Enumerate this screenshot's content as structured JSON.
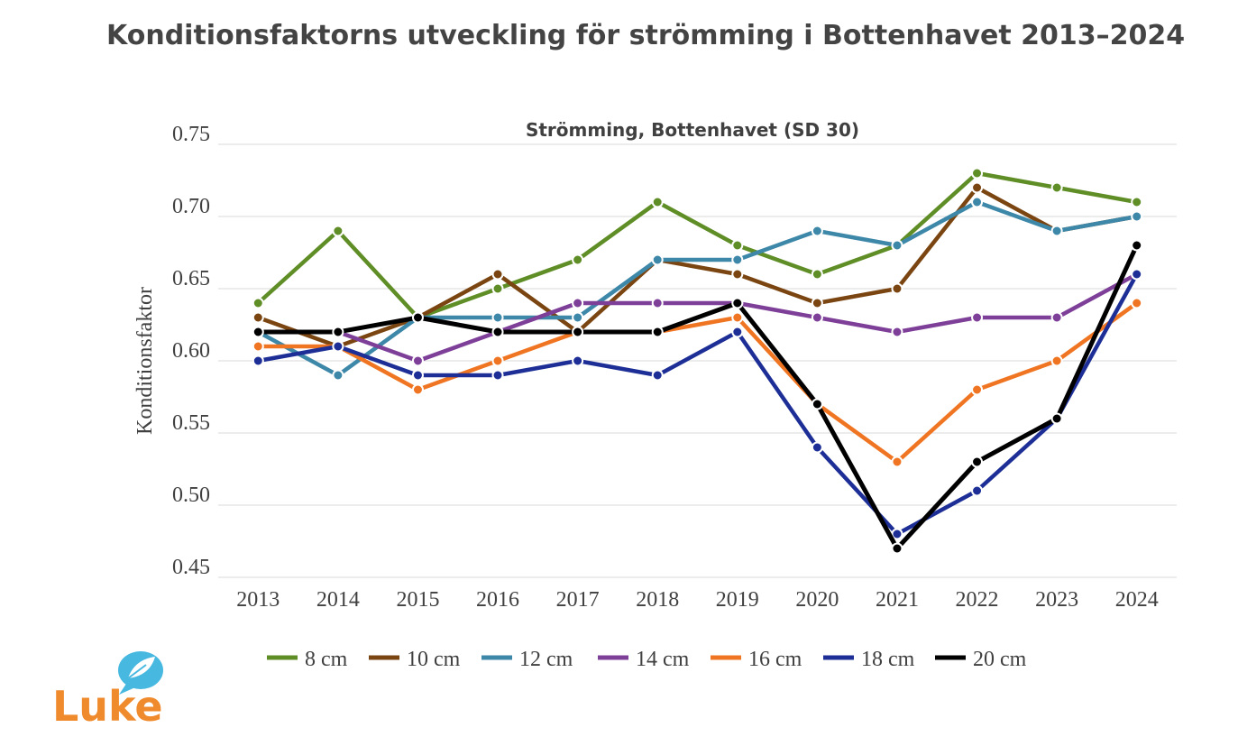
{
  "page": {
    "title": "Konditionsfaktorns utveckling för strömming i Bottenhavet 2013–2024"
  },
  "logo": {
    "text": "Luke",
    "icon": "leaf-speech-bubble-icon",
    "colors": {
      "text": "#ef8a2d",
      "leaf": "#47b8e0"
    }
  },
  "chart_data": {
    "type": "line",
    "title": "Strömming, Bottenhavet (SD 30)",
    "xlabel": "",
    "ylabel": "Konditionsfaktor",
    "ylim": [
      0.45,
      0.75
    ],
    "yticks": [
      "0.75",
      "0.70",
      "0.65",
      "0.60",
      "0.55",
      "0.50",
      "0.45"
    ],
    "grid": true,
    "legend": "bottom",
    "categories": [
      "2013",
      "2014",
      "2015",
      "2016",
      "2017",
      "2018",
      "2019",
      "2020",
      "2021",
      "2022",
      "2023",
      "2024"
    ],
    "series": [
      {
        "name": "8 cm",
        "color": "#5f8d26",
        "values": [
          0.64,
          0.69,
          0.63,
          0.65,
          0.67,
          0.71,
          0.68,
          0.66,
          0.68,
          0.73,
          0.72,
          0.71
        ]
      },
      {
        "name": "10 cm",
        "color": "#7a4511",
        "values": [
          0.63,
          0.61,
          0.63,
          0.66,
          0.62,
          0.67,
          0.66,
          0.64,
          0.65,
          0.72,
          0.69,
          0.7
        ]
      },
      {
        "name": "12 cm",
        "color": "#3d87a8",
        "values": [
          0.62,
          0.59,
          0.63,
          0.63,
          0.63,
          0.67,
          0.67,
          0.69,
          0.68,
          0.71,
          0.69,
          0.7
        ]
      },
      {
        "name": "14 cm",
        "color": "#7e3f98",
        "values": [
          0.62,
          0.62,
          0.6,
          0.62,
          0.64,
          0.64,
          0.64,
          0.63,
          0.62,
          0.63,
          0.63,
          0.66
        ]
      },
      {
        "name": "16 cm",
        "color": "#f07522",
        "values": [
          0.61,
          0.61,
          0.58,
          0.6,
          0.62,
          0.62,
          0.63,
          0.57,
          0.53,
          0.58,
          0.6,
          0.64
        ]
      },
      {
        "name": "18 cm",
        "color": "#1d2f96",
        "values": [
          0.6,
          0.61,
          0.59,
          0.59,
          0.6,
          0.59,
          0.62,
          0.54,
          0.48,
          0.51,
          0.56,
          0.66
        ]
      },
      {
        "name": "20 cm",
        "color": "#000000",
        "values": [
          0.62,
          0.62,
          0.63,
          0.62,
          0.62,
          0.62,
          0.64,
          0.57,
          0.47,
          0.53,
          0.56,
          0.68
        ]
      }
    ]
  }
}
